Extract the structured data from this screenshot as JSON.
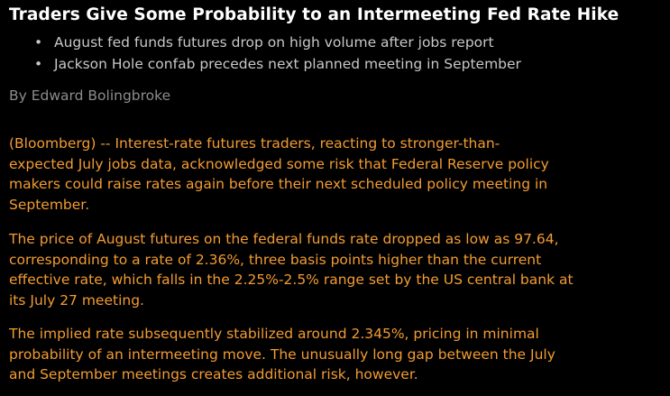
{
  "headline": "Traders Give Some Probability to an Intermeeting Fed Rate Hike",
  "bullets": [
    "August fed funds futures drop on high volume after jobs report",
    "Jackson Hole confab precedes next planned meeting in September"
  ],
  "byline": "By Edward Bolingbroke",
  "paragraphs": [
    {
      "lines": [
        "(Bloomberg) -- Interest-rate futures traders, reacting to stronger-than-",
        "expected July jobs data, acknowledged some risk that Federal Reserve policy",
        "makers could raise rates again before their next scheduled policy meeting in",
        "September."
      ]
    },
    {
      "lines": [
        "The price of August futures on the federal funds rate dropped as low as 97.64,",
        "corresponding to a rate of 2.36%, three basis points higher than the current",
        "effective rate, which falls in the 2.25%-2.5% range set by the US central bank at",
        "its July 27 meeting."
      ]
    },
    {
      "lines": [
        "The implied rate subsequently stabilized around 2.345%, pricing in minimal",
        "probability of an intermeeting move. The unusually long gap between the July",
        "and September meetings creates additional risk, however."
      ]
    }
  ]
}
